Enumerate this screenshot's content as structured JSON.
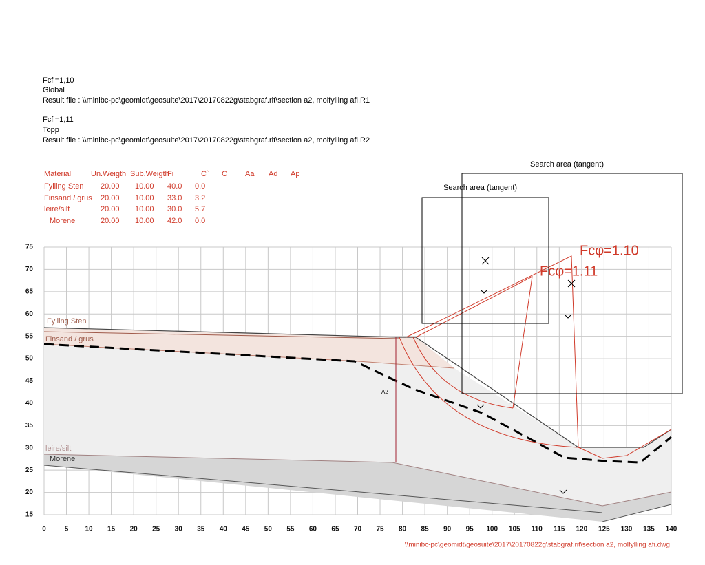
{
  "header": {
    "blocks": [
      {
        "factor": "Fcfi=1,10",
        "name": "Global",
        "result_file": "Result file : \\\\minibc-pc\\geomidt\\geosuite\\2017\\20170822g\\stabgraf.rit\\section a2, molfylling afi.R1"
      },
      {
        "factor": "Fcfi=1,11",
        "name": "Topp",
        "result_file": "Result file : \\\\minibc-pc\\geomidt\\geosuite\\2017\\20170822g\\stabgraf.rit\\section a2, molfylling afi.R2"
      }
    ]
  },
  "materials": {
    "columns": [
      "Material",
      "Un.Weigth",
      "Sub.Weigth",
      "Fi",
      "C`",
      "C",
      "Aa",
      "Ad",
      "Ap"
    ],
    "rows": [
      [
        "Fylling Sten",
        "20.00",
        "10.00",
        "40.0",
        "0.0"
      ],
      [
        "Finsand / grus",
        "20.00",
        "10.00",
        "33.0",
        "3.2"
      ],
      [
        "leire/silt",
        "20.00",
        "10.00",
        "30.0",
        "5.7"
      ],
      [
        "Morene",
        "20.00",
        "10.00",
        "42.0",
        "0.0"
      ]
    ]
  },
  "axis": {
    "xlim": [
      0,
      140
    ],
    "ylim": [
      15,
      75
    ],
    "xticks": [
      0,
      5,
      10,
      15,
      20,
      25,
      30,
      35,
      40,
      45,
      50,
      55,
      60,
      65,
      70,
      75,
      80,
      85,
      90,
      95,
      100,
      105,
      110,
      115,
      120,
      125,
      130,
      135,
      140
    ],
    "yticks": [
      15,
      20,
      25,
      30,
      35,
      40,
      45,
      50,
      55,
      60,
      65,
      70,
      75
    ]
  },
  "labels": {
    "search_area_small": "Search area (tangent)",
    "search_area_large": "Search area (tangent)",
    "fc_global": "Fcφ=1.10",
    "fc_topp": "Fcφ=1.11",
    "section": "A2",
    "layers": [
      "Fylling Sten",
      "Finsand / grus",
      "leire/silt",
      "Morene"
    ]
  },
  "footer": "\\\\minibc-pc\\geomidt\\geosuite\\2017\\20170822g\\stabgraf.rit\\section a2, molfylling afi.dwg"
}
